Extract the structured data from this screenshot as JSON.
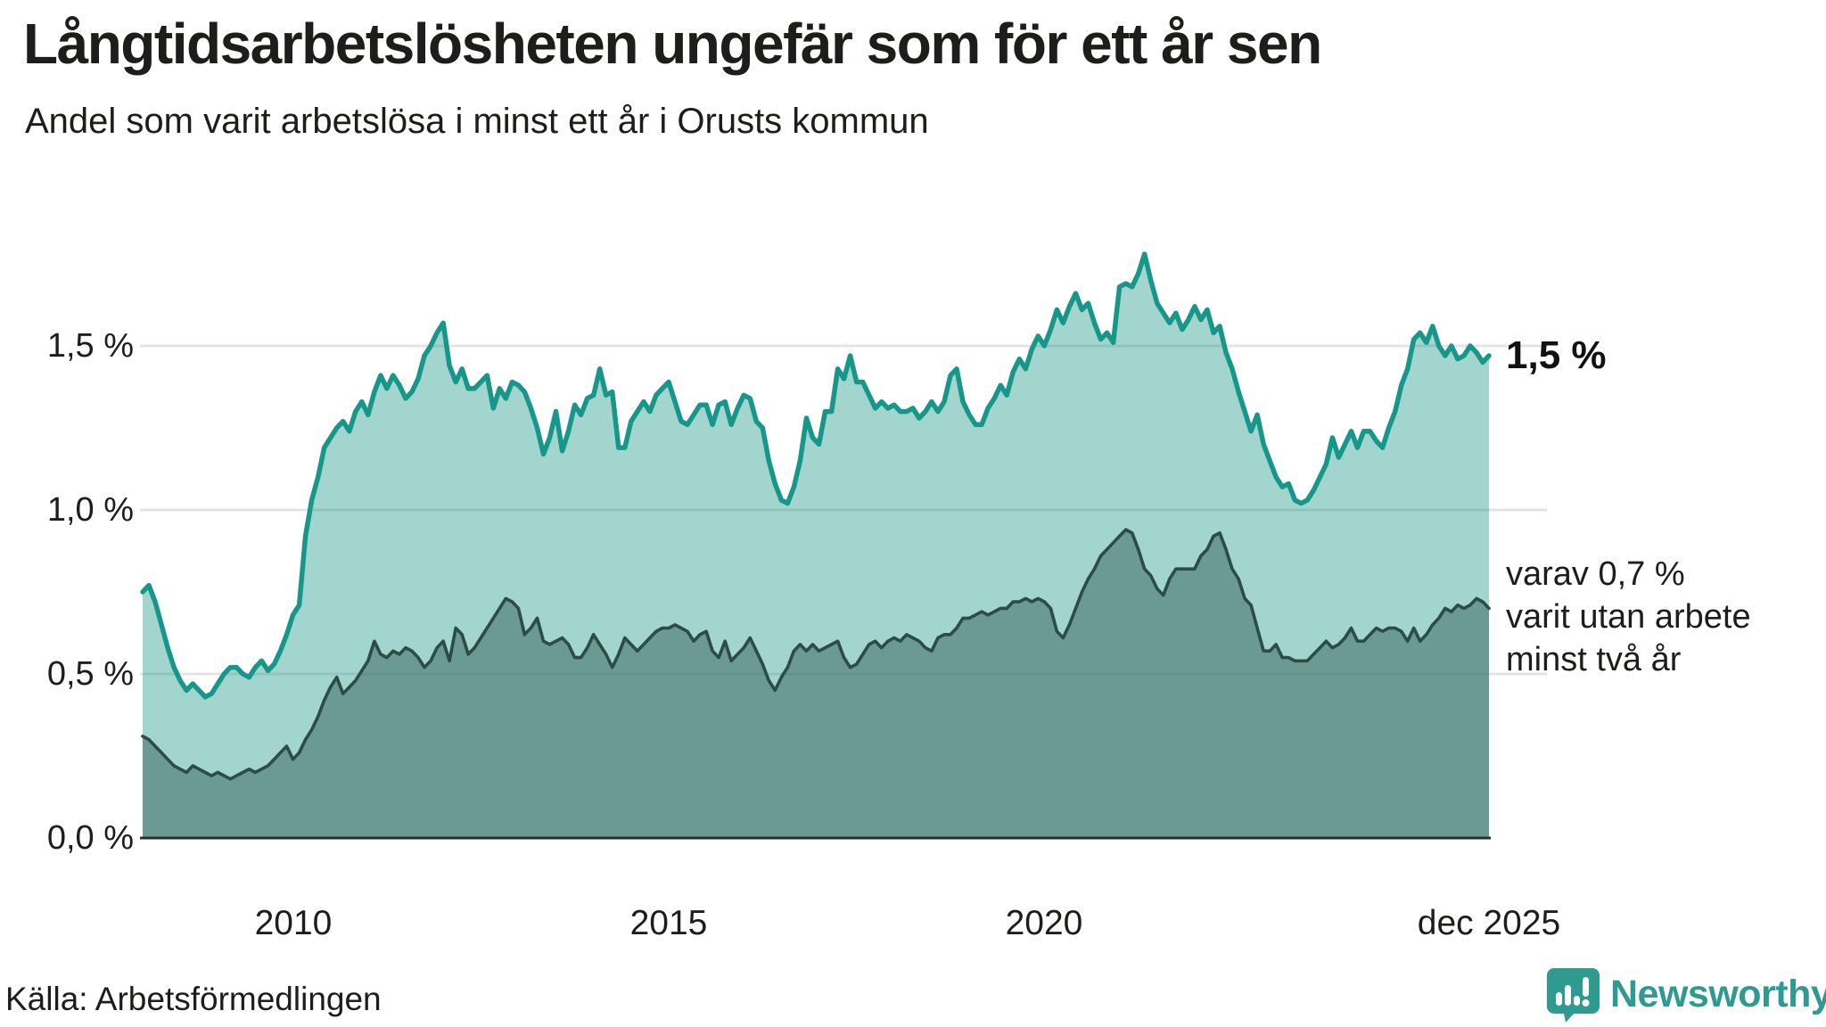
{
  "title": "Långtidsarbetslösheten ungefär som för ett år sen",
  "subtitle": "Andel som varit arbetslösa i minst ett år i Orusts kommun",
  "source": "Källa: Arbetsförmedlingen",
  "logo": {
    "text": "Newsworthy",
    "icon": "newsworthy-speech-bubble-bars-icon"
  },
  "annotations": {
    "latest_total": "1,5 %",
    "secondary_line1": "varav 0,7 %",
    "secondary_line2": "varit utan arbete",
    "secondary_line3": "minst två år"
  },
  "axes": {
    "y_ticks": [
      "1,5 %",
      "1,0 %",
      "0,5 %",
      "0,0 %"
    ],
    "x_ticks": [
      "2010",
      "2015",
      "2020",
      "dec 2025"
    ]
  },
  "colors": {
    "teal_line": "#17978a",
    "light_fill": "rgba(26,150,135,0.40)",
    "dark_fill": "rgba(45,88,82,0.47)",
    "dark_line": "#2b4c47",
    "gridline": "#e4e4e6",
    "baseline": "#2a2e2d",
    "logo_teal": "#2f9a90",
    "text": "#1d1d1b"
  },
  "chart_data": {
    "type": "area",
    "unit": "%",
    "x_start": "2008-01",
    "x_end": "2025-12",
    "x_interval": "monthly",
    "ylim": [
      0,
      1.85
    ],
    "y_gridlines": [
      0.5,
      1.0,
      1.5
    ],
    "grid": true,
    "legend_position": "none",
    "x_tick_month_indices": [
      24,
      84,
      144,
      215
    ],
    "latest": {
      "one_year": 1.5,
      "two_years": 0.7
    },
    "series": [
      {
        "name": "minst ett år",
        "values": [
          0.75,
          0.77,
          0.72,
          0.65,
          0.58,
          0.52,
          0.48,
          0.45,
          0.47,
          0.45,
          0.43,
          0.44,
          0.47,
          0.5,
          0.52,
          0.52,
          0.5,
          0.49,
          0.52,
          0.54,
          0.51,
          0.53,
          0.57,
          0.62,
          0.68,
          0.71,
          0.92,
          1.03,
          1.1,
          1.19,
          1.22,
          1.25,
          1.27,
          1.24,
          1.3,
          1.33,
          1.29,
          1.36,
          1.41,
          1.37,
          1.41,
          1.38,
          1.34,
          1.36,
          1.4,
          1.47,
          1.5,
          1.54,
          1.57,
          1.44,
          1.39,
          1.43,
          1.37,
          1.37,
          1.39,
          1.41,
          1.31,
          1.37,
          1.34,
          1.39,
          1.38,
          1.36,
          1.31,
          1.25,
          1.17,
          1.22,
          1.3,
          1.18,
          1.24,
          1.32,
          1.29,
          1.34,
          1.35,
          1.43,
          1.35,
          1.36,
          1.19,
          1.19,
          1.27,
          1.3,
          1.33,
          1.3,
          1.35,
          1.37,
          1.39,
          1.33,
          1.27,
          1.26,
          1.29,
          1.32,
          1.32,
          1.26,
          1.32,
          1.33,
          1.26,
          1.31,
          1.35,
          1.34,
          1.27,
          1.25,
          1.15,
          1.08,
          1.03,
          1.02,
          1.07,
          1.15,
          1.28,
          1.22,
          1.2,
          1.3,
          1.3,
          1.43,
          1.4,
          1.47,
          1.39,
          1.39,
          1.35,
          1.31,
          1.33,
          1.31,
          1.32,
          1.3,
          1.3,
          1.31,
          1.28,
          1.3,
          1.33,
          1.3,
          1.33,
          1.41,
          1.43,
          1.33,
          1.29,
          1.26,
          1.26,
          1.31,
          1.34,
          1.38,
          1.35,
          1.42,
          1.46,
          1.43,
          1.49,
          1.53,
          1.5,
          1.55,
          1.61,
          1.57,
          1.62,
          1.66,
          1.61,
          1.63,
          1.57,
          1.52,
          1.54,
          1.51,
          1.68,
          1.69,
          1.68,
          1.72,
          1.78,
          1.7,
          1.63,
          1.6,
          1.57,
          1.6,
          1.55,
          1.58,
          1.62,
          1.58,
          1.61,
          1.54,
          1.56,
          1.48,
          1.43,
          1.36,
          1.3,
          1.24,
          1.29,
          1.2,
          1.15,
          1.1,
          1.07,
          1.08,
          1.03,
          1.02,
          1.03,
          1.06,
          1.1,
          1.14,
          1.22,
          1.16,
          1.2,
          1.24,
          1.19,
          1.24,
          1.24,
          1.21,
          1.19,
          1.25,
          1.3,
          1.38,
          1.43,
          1.52,
          1.54,
          1.51,
          1.56,
          1.5,
          1.47,
          1.5,
          1.46,
          1.47,
          1.5,
          1.48,
          1.45,
          1.47
        ]
      },
      {
        "name": "minst två år",
        "values": [
          0.31,
          0.3,
          0.28,
          0.26,
          0.24,
          0.22,
          0.21,
          0.2,
          0.22,
          0.21,
          0.2,
          0.19,
          0.2,
          0.19,
          0.18,
          0.19,
          0.2,
          0.21,
          0.2,
          0.21,
          0.22,
          0.24,
          0.26,
          0.28,
          0.24,
          0.26,
          0.3,
          0.33,
          0.37,
          0.42,
          0.46,
          0.49,
          0.44,
          0.46,
          0.48,
          0.51,
          0.54,
          0.6,
          0.56,
          0.55,
          0.57,
          0.56,
          0.58,
          0.57,
          0.55,
          0.52,
          0.54,
          0.58,
          0.6,
          0.54,
          0.64,
          0.62,
          0.56,
          0.58,
          0.61,
          0.64,
          0.67,
          0.7,
          0.73,
          0.72,
          0.7,
          0.62,
          0.64,
          0.67,
          0.6,
          0.59,
          0.6,
          0.61,
          0.59,
          0.55,
          0.55,
          0.58,
          0.62,
          0.59,
          0.56,
          0.52,
          0.56,
          0.61,
          0.59,
          0.57,
          0.59,
          0.61,
          0.63,
          0.64,
          0.64,
          0.65,
          0.64,
          0.63,
          0.6,
          0.62,
          0.63,
          0.57,
          0.55,
          0.6,
          0.54,
          0.56,
          0.58,
          0.61,
          0.57,
          0.53,
          0.48,
          0.45,
          0.49,
          0.52,
          0.57,
          0.59,
          0.57,
          0.59,
          0.57,
          0.58,
          0.59,
          0.6,
          0.55,
          0.52,
          0.53,
          0.56,
          0.59,
          0.6,
          0.58,
          0.6,
          0.61,
          0.6,
          0.62,
          0.61,
          0.6,
          0.58,
          0.57,
          0.61,
          0.62,
          0.62,
          0.64,
          0.67,
          0.67,
          0.68,
          0.69,
          0.68,
          0.69,
          0.7,
          0.7,
          0.72,
          0.72,
          0.73,
          0.72,
          0.73,
          0.72,
          0.7,
          0.63,
          0.61,
          0.65,
          0.7,
          0.75,
          0.79,
          0.82,
          0.86,
          0.88,
          0.9,
          0.92,
          0.94,
          0.93,
          0.88,
          0.82,
          0.8,
          0.76,
          0.74,
          0.79,
          0.82,
          0.82,
          0.82,
          0.82,
          0.86,
          0.88,
          0.92,
          0.93,
          0.88,
          0.82,
          0.79,
          0.73,
          0.71,
          0.64,
          0.57,
          0.57,
          0.59,
          0.55,
          0.55,
          0.54,
          0.54,
          0.54,
          0.56,
          0.58,
          0.6,
          0.58,
          0.59,
          0.61,
          0.64,
          0.6,
          0.6,
          0.62,
          0.64,
          0.63,
          0.64,
          0.64,
          0.63,
          0.6,
          0.64,
          0.6,
          0.62,
          0.65,
          0.67,
          0.7,
          0.69,
          0.71,
          0.7,
          0.71,
          0.73,
          0.72,
          0.7
        ]
      }
    ]
  }
}
